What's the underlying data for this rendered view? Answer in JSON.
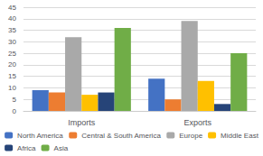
{
  "chart_data": {
    "type": "bar",
    "categories": [
      "Imports",
      "Exports"
    ],
    "series": [
      {
        "name": "North America",
        "color": "#4472C4",
        "values": [
          9,
          14
        ]
      },
      {
        "name": "Central & South America",
        "color": "#ED7D31",
        "values": [
          8,
          5
        ]
      },
      {
        "name": "Europe",
        "color": "#A9A9A9",
        "values": [
          32,
          39
        ]
      },
      {
        "name": "Middle East",
        "color": "#FFC000",
        "values": [
          7,
          13
        ]
      },
      {
        "name": "Africa",
        "color": "#264478",
        "values": [
          8,
          3
        ]
      },
      {
        "name": "Asia",
        "color": "#70AD47",
        "values": [
          36,
          25
        ]
      }
    ],
    "ylim": [
      0,
      45
    ],
    "yticks": [
      0,
      5,
      10,
      15,
      20,
      25,
      30,
      35,
      40,
      45
    ],
    "grid": true,
    "legend": "bottom"
  }
}
